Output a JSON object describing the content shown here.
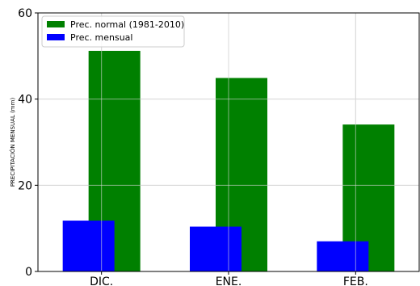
{
  "chart_data": {
    "type": "bar",
    "categories": [
      "DIC.",
      "ENE.",
      "FEB."
    ],
    "series": [
      {
        "name": "Prec. normal (1981-2010)",
        "values": [
          51.2,
          44.9,
          34.1
        ],
        "color": "#008000"
      },
      {
        "name": "Prec. mensual",
        "values": [
          11.8,
          10.4,
          7.0
        ],
        "color": "#0000ff"
      }
    ],
    "ylabel": "PRECIPITACIÓN MENSUAL (mm)",
    "xlabel": "",
    "title": "",
    "ylim": [
      0,
      60
    ],
    "yticks": [
      0,
      20,
      40,
      60
    ],
    "grid": true,
    "legend_position": "top-left"
  }
}
